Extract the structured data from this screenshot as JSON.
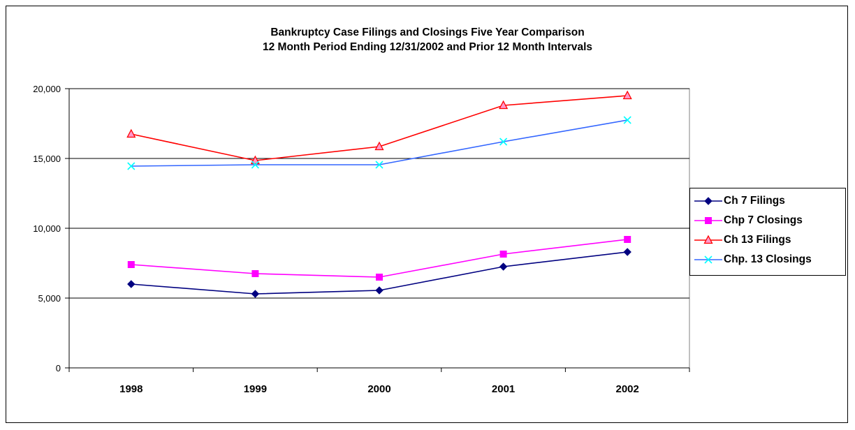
{
  "chart_data": {
    "type": "line",
    "title_line1": "Bankruptcy Case Filings and Closings Five Year Comparison",
    "title_line2": "12 Month Period Ending 12/31/2002 and Prior 12 Month Intervals",
    "categories": [
      "1998",
      "1999",
      "2000",
      "2001",
      "2002"
    ],
    "ylim": [
      0,
      20000
    ],
    "yticks": [
      0,
      5000,
      10000,
      15000,
      20000
    ],
    "ytick_labels": [
      "0",
      "5,000",
      "10,000",
      "15,000",
      "20,000"
    ],
    "grid": true,
    "legend_position": "right",
    "series": [
      {
        "name": "Ch 7 Filings",
        "values": [
          6000,
          5300,
          5550,
          7250,
          8300
        ],
        "color": "#000080",
        "marker": "diamond"
      },
      {
        "name": "Chp 7 Closings",
        "values": [
          7400,
          6750,
          6500,
          8150,
          9200
        ],
        "color": "#FF00FF",
        "marker": "square"
      },
      {
        "name": "Ch 13 Filings",
        "values": [
          16750,
          14850,
          15850,
          18800,
          19500
        ],
        "color": "#FF0000",
        "marker": "triangle",
        "marker_fill": "#FF99CC"
      },
      {
        "name": "Chp. 13 Closings",
        "values": [
          14450,
          14550,
          14550,
          16200,
          17750
        ],
        "color": "#3366FF",
        "marker": "x",
        "marker_color": "#00FFFF"
      }
    ]
  }
}
